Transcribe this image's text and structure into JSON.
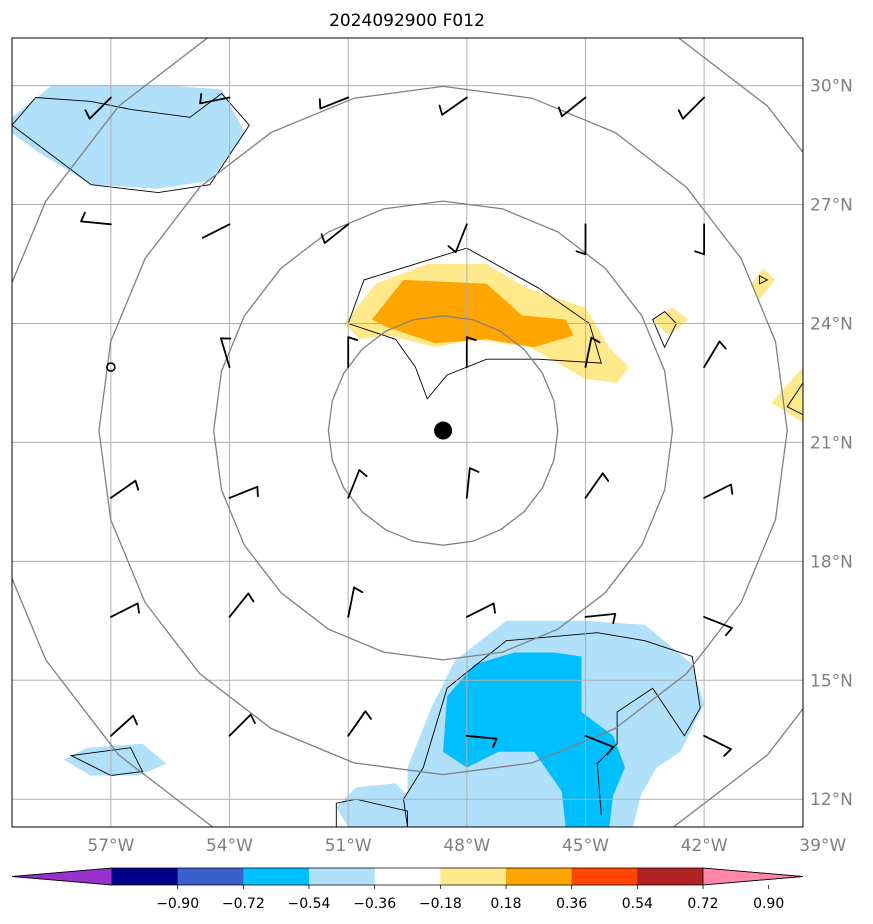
{
  "title": "2024092900 F012",
  "colors": {
    "grid": "#b0b0b0",
    "range_ring": "#808080",
    "contour": "#000000",
    "barb": "#000000",
    "neg_light": "#b0e0fa",
    "neg_mid": "#00bfff",
    "pos_light": "#ffe98b",
    "pos_mid": "#ffa500"
  },
  "map": {
    "lon_min": -59.5,
    "lon_max": -39.5,
    "lat_min": 11.3,
    "lat_max": 31.2,
    "lon_ticks": [
      {
        "value": -57,
        "label": "57°W"
      },
      {
        "value": -54,
        "label": "54°W"
      },
      {
        "value": -51,
        "label": "51°W"
      },
      {
        "value": -48,
        "label": "48°W"
      },
      {
        "value": -45,
        "label": "45°W"
      },
      {
        "value": -42,
        "label": "42°W"
      },
      {
        "value": -39,
        "label": "39°W"
      }
    ],
    "lat_ticks": [
      {
        "value": 12,
        "label": "12°N"
      },
      {
        "value": 15,
        "label": "15°N"
      },
      {
        "value": 18,
        "label": "18°N"
      },
      {
        "value": 21,
        "label": "21°N"
      },
      {
        "value": 24,
        "label": "24°N"
      },
      {
        "value": 27,
        "label": "27°N"
      },
      {
        "value": 30,
        "label": "30°N"
      }
    ],
    "storm_center": {
      "lon": -48.6,
      "lat": 21.3
    },
    "range_ring_deg": [
      2.9,
      5.8,
      8.7,
      11.6
    ]
  },
  "colorbar": {
    "colors": [
      "#9932cc",
      "#00008b",
      "#3a5fcd",
      "#00bfff",
      "#b0e0fa",
      "#ffffff",
      "#ffe98b",
      "#ffa500",
      "#ff4500",
      "#b22222",
      "#ff88aa"
    ],
    "ticks": [
      "−0.90",
      "−0.72",
      "−0.54",
      "−0.36",
      "−0.18",
      "0.18",
      "0.36",
      "0.54",
      "0.72",
      "0.90"
    ]
  },
  "shaded_regions": [
    {
      "name": "neg-light-nw",
      "color": "neg_light",
      "pts": [
        [
          -59.5,
          29.2
        ],
        [
          -58.5,
          30.0
        ],
        [
          -55.5,
          30.0
        ],
        [
          -54.2,
          29.9
        ],
        [
          -53.6,
          28.8
        ],
        [
          -54.5,
          27.6
        ],
        [
          -55.8,
          27.4
        ],
        [
          -57.5,
          27.5
        ],
        [
          -58.8,
          28.3
        ],
        [
          -59.5,
          28.8
        ]
      ]
    },
    {
      "name": "neg-light-se-main",
      "color": "neg_light",
      "pts": [
        [
          -49.5,
          11.3
        ],
        [
          -49.5,
          12.8
        ],
        [
          -48.9,
          14.3
        ],
        [
          -48.3,
          15.5
        ],
        [
          -47.0,
          16.5
        ],
        [
          -45.0,
          16.5
        ],
        [
          -43.5,
          16.4
        ],
        [
          -42.3,
          15.4
        ],
        [
          -42.0,
          14.4
        ],
        [
          -42.6,
          13.2
        ],
        [
          -43.2,
          12.8
        ],
        [
          -43.6,
          12.1
        ],
        [
          -43.8,
          11.3
        ]
      ]
    },
    {
      "name": "neg-mid-se",
      "color": "neg_mid",
      "pts": [
        [
          -48.5,
          14.6
        ],
        [
          -47.8,
          15.4
        ],
        [
          -46.8,
          15.7
        ],
        [
          -45.8,
          15.7
        ],
        [
          -45.1,
          15.6
        ],
        [
          -45.1,
          14.2
        ],
        [
          -44.3,
          13.6
        ],
        [
          -44.0,
          12.8
        ],
        [
          -44.3,
          12.1
        ],
        [
          -44.4,
          11.3
        ],
        [
          -45.5,
          11.3
        ],
        [
          -45.6,
          12.2
        ],
        [
          -46.3,
          13.2
        ],
        [
          -47.2,
          13.2
        ],
        [
          -48.0,
          12.8
        ],
        [
          -48.6,
          13.2
        ]
      ]
    },
    {
      "name": "neg-light-sw-small",
      "color": "neg_light",
      "pts": [
        [
          -58.2,
          13.0
        ],
        [
          -57.6,
          13.3
        ],
        [
          -56.2,
          13.4
        ],
        [
          -55.6,
          12.9
        ],
        [
          -56.3,
          12.6
        ],
        [
          -57.5,
          12.6
        ]
      ]
    },
    {
      "name": "neg-light-s-small",
      "color": "neg_light",
      "pts": [
        [
          -51.3,
          11.8
        ],
        [
          -50.8,
          12.3
        ],
        [
          -49.8,
          12.4
        ],
        [
          -49.3,
          11.9
        ],
        [
          -49.4,
          11.3
        ],
        [
          -51.0,
          11.3
        ]
      ]
    },
    {
      "name": "pos-light-central",
      "color": "pos_light",
      "pts": [
        [
          -51.1,
          24.0
        ],
        [
          -50.3,
          25.0
        ],
        [
          -49.0,
          25.5
        ],
        [
          -47.5,
          25.5
        ],
        [
          -46.5,
          24.9
        ],
        [
          -45.0,
          24.4
        ],
        [
          -44.4,
          23.4
        ],
        [
          -43.9,
          22.9
        ],
        [
          -44.2,
          22.5
        ],
        [
          -45.0,
          22.6
        ],
        [
          -46.4,
          23.4
        ],
        [
          -47.8,
          23.6
        ],
        [
          -48.8,
          23.4
        ],
        [
          -50.0,
          23.7
        ],
        [
          -50.7,
          23.6
        ]
      ]
    },
    {
      "name": "pos-mid-central",
      "color": "pos_mid",
      "pts": [
        [
          -50.4,
          24.1
        ],
        [
          -49.6,
          25.1
        ],
        [
          -47.5,
          25.0
        ],
        [
          -46.6,
          24.2
        ],
        [
          -45.5,
          24.1
        ],
        [
          -45.3,
          23.7
        ],
        [
          -46.3,
          23.4
        ],
        [
          -47.5,
          23.6
        ],
        [
          -48.8,
          23.5
        ],
        [
          -50.0,
          23.9
        ]
      ]
    },
    {
      "name": "pos-light-e-small-1",
      "color": "pos_light",
      "pts": [
        [
          -43.3,
          24.1
        ],
        [
          -42.8,
          24.4
        ],
        [
          -42.4,
          24.1
        ],
        [
          -42.9,
          23.7
        ]
      ]
    },
    {
      "name": "pos-light-e-small-2",
      "color": "pos_light",
      "pts": [
        [
          -40.8,
          25.0
        ],
        [
          -40.5,
          25.4
        ],
        [
          -40.2,
          25.1
        ],
        [
          -40.6,
          24.6
        ]
      ]
    },
    {
      "name": "pos-light-far-east",
      "color": "pos_light",
      "pts": [
        [
          -39.5,
          22.9
        ],
        [
          -40.3,
          22.0
        ],
        [
          -39.5,
          21.5
        ]
      ]
    }
  ],
  "contours": [
    {
      "name": "contour-central",
      "closed": true,
      "pts": [
        [
          -51.0,
          24.0
        ],
        [
          -50.6,
          25.1
        ],
        [
          -48.0,
          25.9
        ],
        [
          -46.2,
          24.9
        ],
        [
          -44.9,
          24.0
        ],
        [
          -44.6,
          23.0
        ],
        [
          -46.2,
          23.1
        ],
        [
          -47.5,
          23.1
        ],
        [
          -48.5,
          22.7
        ],
        [
          -49.0,
          22.1
        ],
        [
          -49.3,
          22.9
        ],
        [
          -49.8,
          23.6
        ]
      ]
    },
    {
      "name": "contour-nw",
      "closed": true,
      "pts": [
        [
          -59.5,
          29.0
        ],
        [
          -58.9,
          29.7
        ],
        [
          -57.5,
          29.6
        ],
        [
          -56.5,
          29.4
        ],
        [
          -55.0,
          29.2
        ],
        [
          -54.2,
          29.8
        ],
        [
          -53.5,
          29.0
        ],
        [
          -54.5,
          27.5
        ],
        [
          -55.8,
          27.3
        ],
        [
          -57.5,
          27.5
        ]
      ]
    },
    {
      "name": "contour-se-outer",
      "closed": false,
      "pts": [
        [
          -49.5,
          11.3
        ],
        [
          -49.6,
          12.0
        ],
        [
          -49.1,
          12.8
        ],
        [
          -48.5,
          14.8
        ],
        [
          -47.0,
          16.0
        ],
        [
          -44.7,
          16.2
        ],
        [
          -43.5,
          16.0
        ],
        [
          -42.3,
          15.6
        ],
        [
          -42.1,
          14.3
        ],
        [
          -42.5,
          13.6
        ],
        [
          -43.3,
          14.8
        ],
        [
          -44.2,
          14.2
        ],
        [
          -44.2,
          13.4
        ],
        [
          -44.7,
          12.9
        ],
        [
          -44.6,
          11.6
        ]
      ]
    },
    {
      "name": "contour-sw-small",
      "closed": true,
      "pts": [
        [
          -58.0,
          13.1
        ],
        [
          -56.5,
          13.3
        ],
        [
          -56.2,
          12.7
        ],
        [
          -57.0,
          12.6
        ]
      ]
    },
    {
      "name": "contour-s-small",
      "closed": false,
      "pts": [
        [
          -49.5,
          11.3
        ],
        [
          -49.5,
          11.7
        ],
        [
          -50.8,
          12.0
        ],
        [
          -51.3,
          11.9
        ],
        [
          -51.3,
          11.3
        ]
      ]
    },
    {
      "name": "contour-e-small",
      "closed": true,
      "pts": [
        [
          -43.3,
          24.1
        ],
        [
          -43.0,
          24.3
        ],
        [
          -42.7,
          24.0
        ],
        [
          -43.0,
          23.4
        ]
      ]
    },
    {
      "name": "contour-e-tiny",
      "closed": true,
      "pts": [
        [
          -40.6,
          25.0
        ],
        [
          -40.4,
          25.1
        ],
        [
          -40.6,
          25.2
        ]
      ]
    },
    {
      "name": "contour-far-east",
      "closed": false,
      "pts": [
        [
          -39.5,
          22.5
        ],
        [
          -39.9,
          21.9
        ],
        [
          -39.5,
          21.7
        ]
      ]
    }
  ],
  "barbs": [
    {
      "lon": -57.0,
      "lat": 22.9,
      "calm": true
    },
    {
      "lon": -57.0,
      "lat": 29.7,
      "u": -1,
      "v": -1,
      "s": 1
    },
    {
      "lon": -54.0,
      "lat": 29.7,
      "u": -1,
      "v": -0.2,
      "s": 1
    },
    {
      "lon": -51.0,
      "lat": 29.7,
      "u": -1,
      "v": -0.4,
      "s": 1
    },
    {
      "lon": -48.0,
      "lat": 29.7,
      "u": -1,
      "v": -0.7,
      "s": 1
    },
    {
      "lon": -45.0,
      "lat": 29.7,
      "u": -1,
      "v": -0.8,
      "s": 1
    },
    {
      "lon": -42.0,
      "lat": 29.7,
      "u": -1,
      "v": -1,
      "s": 1
    },
    {
      "lon": -57.0,
      "lat": 26.5,
      "u": -1,
      "v": 0.1,
      "s": 1
    },
    {
      "lon": -54.0,
      "lat": 26.5,
      "u": -1,
      "v": -0.5,
      "s": 0
    },
    {
      "lon": -51.0,
      "lat": 26.5,
      "u": -1,
      "v": -0.8,
      "s": 1
    },
    {
      "lon": -48.0,
      "lat": 26.5,
      "u": -0.4,
      "v": -1,
      "s": 1
    },
    {
      "lon": -45.0,
      "lat": 26.5,
      "u": 0,
      "v": -1,
      "s": 1
    },
    {
      "lon": -42.0,
      "lat": 26.5,
      "u": 0,
      "v": -1,
      "s": 1
    },
    {
      "lon": -54.0,
      "lat": 22.9,
      "u": -0.3,
      "v": 1,
      "s": 1
    },
    {
      "lon": -51.0,
      "lat": 22.9,
      "u": 0,
      "v": 1,
      "s": 1
    },
    {
      "lon": -48.0,
      "lat": 22.9,
      "u": 0,
      "v": 1,
      "s": 1
    },
    {
      "lon": -45.0,
      "lat": 22.9,
      "u": 0.2,
      "v": 1,
      "s": 1
    },
    {
      "lon": -42.0,
      "lat": 22.9,
      "u": 0.6,
      "v": 1,
      "s": 1
    },
    {
      "lon": -57.0,
      "lat": 19.6,
      "u": 1,
      "v": 0.7,
      "s": 1
    },
    {
      "lon": -54.0,
      "lat": 19.6,
      "u": 1,
      "v": 0.4,
      "s": 1
    },
    {
      "lon": -51.0,
      "lat": 19.6,
      "u": 0.4,
      "v": 1,
      "s": 1
    },
    {
      "lon": -48.0,
      "lat": 19.6,
      "u": 0.1,
      "v": 1,
      "s": 1
    },
    {
      "lon": -45.0,
      "lat": 19.6,
      "u": 0.7,
      "v": 1,
      "s": 1
    },
    {
      "lon": -42.0,
      "lat": 19.6,
      "u": 1,
      "v": 0.5,
      "s": 1
    },
    {
      "lon": -57.0,
      "lat": 16.6,
      "u": 1,
      "v": 0.5,
      "s": 1
    },
    {
      "lon": -54.0,
      "lat": 16.6,
      "u": 0.8,
      "v": 1,
      "s": 1
    },
    {
      "lon": -51.0,
      "lat": 16.6,
      "u": 0.2,
      "v": 1,
      "s": 1
    },
    {
      "lon": -48.0,
      "lat": 16.6,
      "u": 1,
      "v": 0.5,
      "s": 1
    },
    {
      "lon": -45.0,
      "lat": 16.6,
      "u": 1,
      "v": 0.1,
      "s": 1
    },
    {
      "lon": -42.0,
      "lat": 16.6,
      "u": 1,
      "v": -0.4,
      "s": 1
    },
    {
      "lon": -57.0,
      "lat": 13.6,
      "u": 1,
      "v": 0.9,
      "s": 1
    },
    {
      "lon": -54.0,
      "lat": 13.6,
      "u": 1,
      "v": 1,
      "s": 1
    },
    {
      "lon": -51.0,
      "lat": 13.6,
      "u": 0.7,
      "v": 1,
      "s": 1
    },
    {
      "lon": -48.0,
      "lat": 13.6,
      "u": 1,
      "v": -0.1,
      "s": 1
    },
    {
      "lon": -45.0,
      "lat": 13.6,
      "u": 1,
      "v": -0.4,
      "s": 1
    },
    {
      "lon": -42.0,
      "lat": 13.6,
      "u": 1,
      "v": -0.5,
      "s": 1
    }
  ]
}
